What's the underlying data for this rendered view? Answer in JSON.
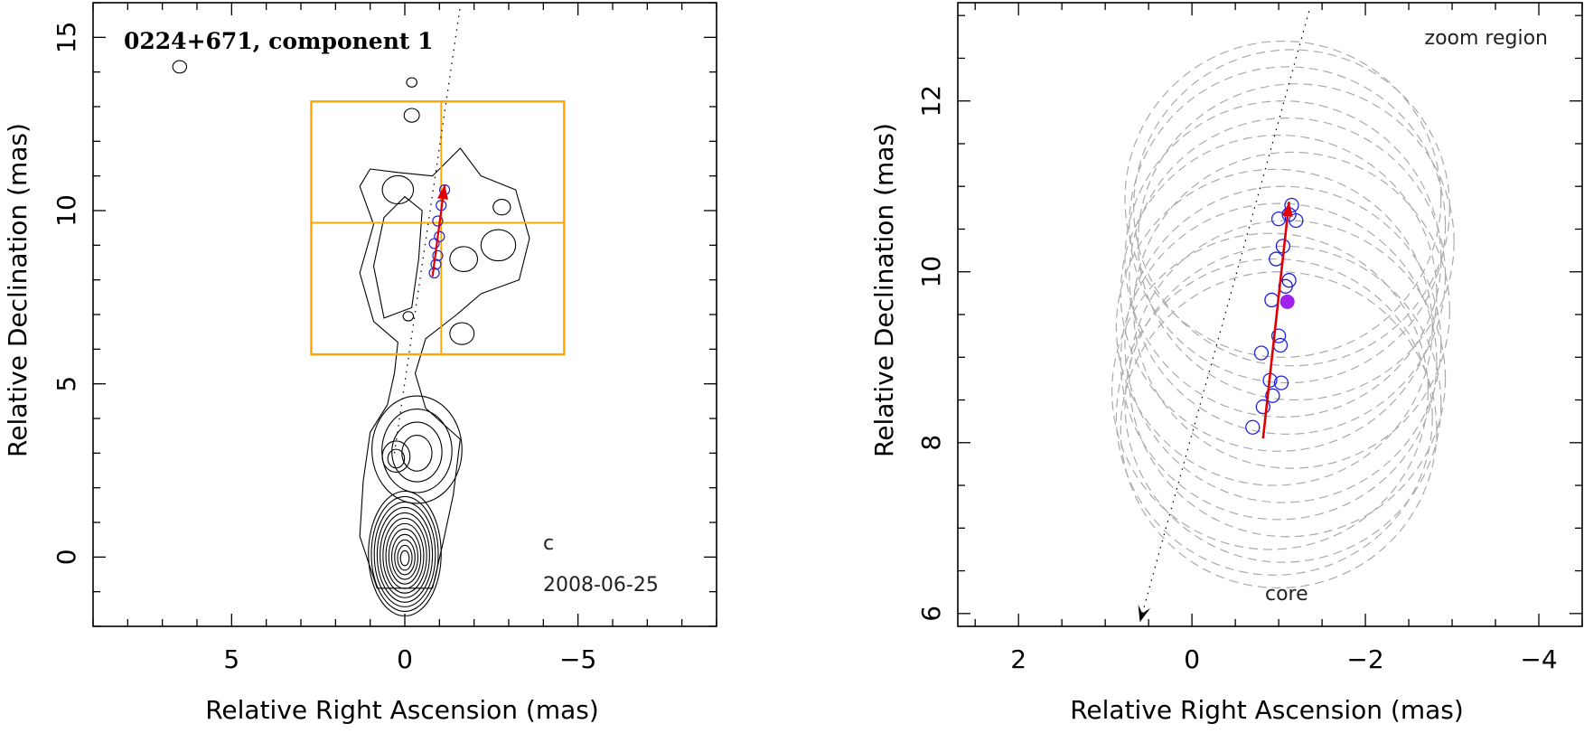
{
  "chart_data": [
    {
      "type": "contour",
      "title": "0224+671, component 1",
      "xlabel": "Relative Right Ascension (mas)",
      "ylabel": "Relative Declination (mas)",
      "xlim": [
        9,
        -9
      ],
      "ylim": [
        -2,
        16
      ],
      "x_ticks": [
        5,
        0,
        -5
      ],
      "y_ticks": [
        0,
        5,
        10,
        15
      ],
      "annotations": {
        "epoch": "2008-06-25",
        "beam": "c"
      },
      "zoom_box": {
        "ra": [
          2.7,
          -4.6
        ],
        "dec": [
          5.85,
          13.15
        ],
        "center": [
          -1.05,
          9.65
        ],
        "color": "#FFA500"
      },
      "jet_direction_line": {
        "from": [
          0.3,
          3.0
        ],
        "to": [
          -1.6,
          15.9
        ]
      },
      "positions": [
        {
          "ra": -0.85,
          "dec": 8.2
        },
        {
          "ra": -0.9,
          "dec": 8.45
        },
        {
          "ra": -0.95,
          "dec": 8.7
        },
        {
          "ra": -0.85,
          "dec": 9.05
        },
        {
          "ra": -1.0,
          "dec": 9.25
        },
        {
          "ra": -0.95,
          "dec": 9.7
        },
        {
          "ra": -1.05,
          "dec": 10.15
        },
        {
          "ra": -1.15,
          "dec": 10.6
        }
      ],
      "motion_arrow": {
        "from": [
          -0.8,
          8.1
        ],
        "to": [
          -1.15,
          10.75
        ],
        "color": "#E00000"
      },
      "contour_sources": [
        {
          "ra": 0.0,
          "dec": 0.1,
          "rx": 1.05,
          "ry": 1.8,
          "levels": 12
        },
        {
          "ra": -0.35,
          "dec": 3.1,
          "rx": 1.3,
          "ry": 1.55,
          "levels": 4
        },
        {
          "ra": 0.25,
          "dec": 2.9,
          "rx": 0.4,
          "ry": 0.45,
          "levels": 2
        }
      ],
      "islands": [
        {
          "ra": -0.2,
          "dec": 13.7,
          "r": 0.15
        },
        {
          "ra": -0.2,
          "dec": 12.75,
          "r": 0.22
        },
        {
          "ra": 6.5,
          "dec": 14.15,
          "r": 0.2
        },
        {
          "ra": 0.2,
          "dec": 10.6,
          "r": 0.45
        },
        {
          "ra": -2.7,
          "dec": 9.0,
          "r": 0.5
        },
        {
          "ra": -2.8,
          "dec": 10.1,
          "r": 0.25
        },
        {
          "ra": -1.7,
          "dec": 8.6,
          "r": 0.4
        },
        {
          "ra": -1.65,
          "dec": 6.45,
          "r": 0.35
        },
        {
          "ra": -0.1,
          "dec": 6.95,
          "r": 0.15
        }
      ]
    },
    {
      "type": "scatter",
      "title": "zoom region",
      "xlabel": "Relative Right Ascension (mas)",
      "ylabel": "Relative Declination (mas)",
      "xlim": [
        2.7,
        -4.5
      ],
      "ylim": [
        5.85,
        13.15
      ],
      "x_ticks": [
        2,
        0,
        -2,
        -4
      ],
      "y_ticks": [
        6,
        8,
        10,
        12
      ],
      "annotations": {
        "core": "core"
      },
      "positions": [
        {
          "ra": -0.7,
          "dec": 8.18
        },
        {
          "ra": -0.82,
          "dec": 8.42
        },
        {
          "ra": -0.93,
          "dec": 8.55
        },
        {
          "ra": -1.03,
          "dec": 8.7
        },
        {
          "ra": -0.9,
          "dec": 8.73
        },
        {
          "ra": -0.8,
          "dec": 9.05
        },
        {
          "ra": -1.02,
          "dec": 9.14
        },
        {
          "ra": -1.0,
          "dec": 9.25
        },
        {
          "ra": -0.92,
          "dec": 9.67
        },
        {
          "ra": -1.08,
          "dec": 9.83
        },
        {
          "ra": -1.12,
          "dec": 9.9
        },
        {
          "ra": -0.97,
          "dec": 10.15
        },
        {
          "ra": -1.05,
          "dec": 10.3
        },
        {
          "ra": -1.0,
          "dec": 10.62
        },
        {
          "ra": -1.2,
          "dec": 10.6
        },
        {
          "ra": -1.12,
          "dec": 10.67
        },
        {
          "ra": -1.15,
          "dec": 10.78
        }
      ],
      "mean_position": {
        "ra": -1.1,
        "dec": 9.65,
        "color": "#A020F0"
      },
      "motion_arrow": {
        "from": [
          -0.82,
          8.05
        ],
        "to": [
          -1.12,
          10.82
        ],
        "color": "#E00000"
      },
      "core_direction_line": {
        "from": [
          -1.35,
          13.05
        ],
        "to": [
          0.6,
          5.9
        ]
      },
      "uncertainty_circles": {
        "radius_dec": 1.85,
        "color": "#AAAAAA",
        "centers": [
          {
            "ra": -1.0,
            "dec": 8.15
          },
          {
            "ra": -0.95,
            "dec": 8.3
          },
          {
            "ra": -1.05,
            "dec": 8.45
          },
          {
            "ra": -0.9,
            "dec": 8.6
          },
          {
            "ra": -1.1,
            "dec": 8.75
          },
          {
            "ra": -1.0,
            "dec": 8.95
          },
          {
            "ra": -1.05,
            "dec": 9.15
          },
          {
            "ra": -0.95,
            "dec": 9.35
          },
          {
            "ra": -1.15,
            "dec": 9.55
          },
          {
            "ra": -1.0,
            "dec": 9.75
          },
          {
            "ra": -1.1,
            "dec": 9.95
          },
          {
            "ra": -1.05,
            "dec": 10.15
          },
          {
            "ra": -1.2,
            "dec": 10.35
          },
          {
            "ra": -1.1,
            "dec": 10.55
          },
          {
            "ra": -1.15,
            "dec": 10.75
          },
          {
            "ra": -1.05,
            "dec": 10.85
          }
        ]
      }
    }
  ]
}
